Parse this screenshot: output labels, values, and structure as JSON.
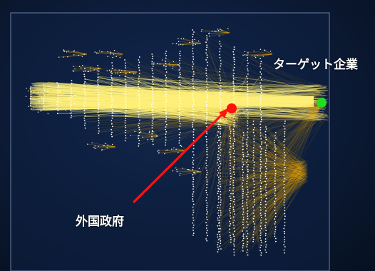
{
  "labels": {
    "target": "ターゲット企業",
    "government": "外国政府"
  },
  "colors": {
    "background": "#0d1d3c",
    "panel_border": "#5d6e93",
    "edge": "#ffb400",
    "edge_core": "#fff27a",
    "node": "#ffffff",
    "government_node": "#ff1010",
    "target_node": "#22dd22",
    "arrow": "#ff1414"
  },
  "icons": {
    "government_node": "red-circle",
    "target_node": "green-circle",
    "arrow": "red-arrow"
  }
}
